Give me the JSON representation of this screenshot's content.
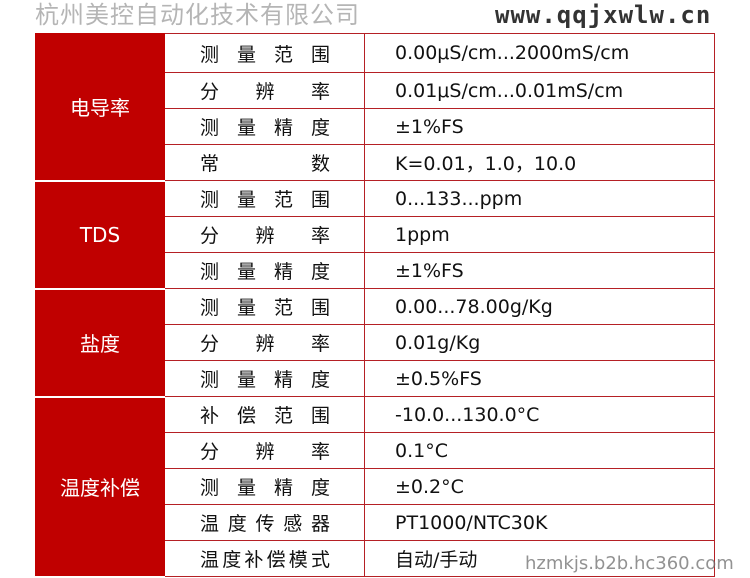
{
  "groups": [
    {
      "name": "电导率",
      "rows": [
        [
          "测量范围",
          "0.00μS/cm...2000mS/cm"
        ],
        [
          "分辨率",
          "0.01μS/cm...0.01mS/cm"
        ],
        [
          "测量精度",
          "±1%FS"
        ],
        [
          "常数",
          "K=0.01，1.0，10.0"
        ]
      ]
    },
    {
      "name": "TDS",
      "rows": [
        [
          "测量范围",
          "0...133...ppm"
        ],
        [
          "分辨率",
          "1ppm"
        ],
        [
          "测量精度",
          "±1%FS"
        ]
      ]
    },
    {
      "name": "盐度",
      "rows": [
        [
          "测量范围",
          "0.00...78.00g/Kg"
        ],
        [
          "分辨率",
          "0.01g/Kg"
        ],
        [
          "测量精度",
          "±0.5%FS"
        ]
      ]
    },
    {
      "name": "温度补偿",
      "rows": [
        [
          "补偿范围",
          "-10.0...130.0°C"
        ],
        [
          "分辨率",
          "0.1°C"
        ],
        [
          "测量精度",
          "±0.2°C"
        ],
        [
          "温度传感器",
          "PT1000/NTC30K"
        ],
        [
          "温度补偿模式",
          "自动/手动"
        ]
      ]
    }
  ],
  "watermark": {
    "site": "www.qqjxwlw.cn",
    "company": "杭州美控自动化技术有限公司",
    "url": "hzmkjs.b2b.hc360.com"
  },
  "colors": {
    "header": "#c00000",
    "border": "#b52025"
  }
}
